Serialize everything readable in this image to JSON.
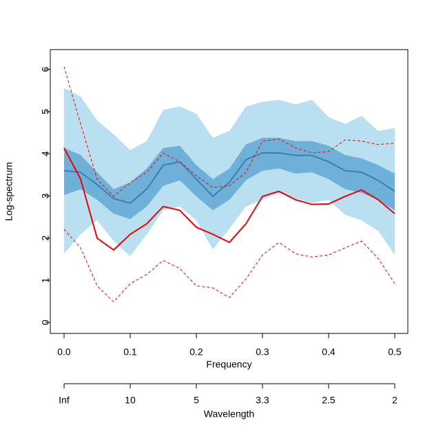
{
  "chart_data": {
    "type": "line",
    "x": [
      0,
      0.025,
      0.05,
      0.075,
      0.1,
      0.125,
      0.15,
      0.175,
      0.2,
      0.225,
      0.25,
      0.275,
      0.3,
      0.325,
      0.35,
      0.375,
      0.4,
      0.425,
      0.45,
      0.475,
      0.5
    ],
    "xlabel": "Frequency",
    "ylabel": "Log-spectrum",
    "xlim": [
      -0.0208,
      0.5198
    ],
    "ylim": [
      -0.26,
      6.47
    ],
    "xticks": [
      {
        "value": 0,
        "label": "0.0"
      },
      0.1,
      0.2,
      0.3,
      0.4,
      0.5
    ],
    "yticks": [
      0,
      1,
      2,
      3,
      4,
      5,
      6
    ],
    "x2label": "Wavelength",
    "x2ticks": [
      {
        "value": 0,
        "label": "Inf"
      },
      {
        "value": 0.1,
        "label": "10"
      },
      {
        "value": 0.2,
        "label": "5"
      },
      {
        "value": 0.3,
        "label": "3.3"
      },
      {
        "value": 0.4,
        "label": "2.5"
      },
      {
        "value": 0.5,
        "label": "2"
      }
    ],
    "bands": [
      {
        "color": "#b9dff0",
        "lower": [
          1.63,
          2.09,
          2.42,
          1.93,
          1.57,
          2.09,
          2.66,
          2.75,
          2.42,
          1.73,
          2.22,
          2.75,
          2.91,
          3.07,
          2.94,
          2.83,
          2.91,
          2.55,
          2.42,
          2.17,
          1.6
        ],
        "upper": [
          5.56,
          5.36,
          4.79,
          4.46,
          4.09,
          4.3,
          5.04,
          5.12,
          4.95,
          4.38,
          4.54,
          5.12,
          5.23,
          5.28,
          5.17,
          5.28,
          4.87,
          4.71,
          4.9,
          4.54,
          4.61
        ]
      },
      {
        "color": "#6fb0d8",
        "lower": [
          3.02,
          3.16,
          2.91,
          2.58,
          2.45,
          2.75,
          3.24,
          3.37,
          2.99,
          2.66,
          2.91,
          3.37,
          3.6,
          3.65,
          3.53,
          3.56,
          3.4,
          3.16,
          3.07,
          2.91,
          2.66
        ],
        "upper": [
          4.14,
          3.97,
          3.56,
          3.16,
          3.32,
          3.65,
          4.14,
          4.19,
          3.73,
          3.4,
          3.65,
          4.22,
          4.38,
          4.38,
          4.3,
          4.3,
          4.19,
          3.97,
          3.89,
          3.73,
          3.53
        ]
      }
    ],
    "series": [
      {
        "color": "#3a7fb4",
        "dash": false,
        "width": 2,
        "values": [
          3.6,
          3.56,
          3.27,
          2.94,
          2.83,
          3.16,
          3.73,
          3.81,
          3.4,
          2.99,
          3.32,
          3.86,
          4.02,
          4.02,
          3.96,
          3.96,
          3.81,
          3.6,
          3.56,
          3.37,
          3.11
        ]
      },
      {
        "color": "#ee0000",
        "dash": false,
        "width": 2,
        "values": [
          4.14,
          3.4,
          2.0,
          1.72,
          2.09,
          2.34,
          2.75,
          2.66,
          2.26,
          2.09,
          1.9,
          2.34,
          2.99,
          3.11,
          2.91,
          2.8,
          2.81,
          2.99,
          3.14,
          2.91,
          2.58
        ]
      },
      {
        "color": "#ee0000",
        "dash": true,
        "width": 1,
        "values": [
          6.07,
          4.71,
          3.4,
          2.99,
          3.32,
          3.56,
          4.02,
          3.81,
          3.48,
          3.2,
          3.24,
          3.56,
          4.3,
          4.35,
          4.14,
          4.02,
          4.05,
          4.33,
          4.3,
          4.22,
          4.25
        ]
      },
      {
        "color": "#ee0000",
        "dash": true,
        "width": 1,
        "values": [
          2.21,
          1.77,
          0.87,
          0.49,
          0.92,
          1.14,
          1.47,
          1.28,
          0.87,
          0.82,
          0.59,
          1.03,
          1.6,
          1.9,
          1.63,
          1.55,
          1.6,
          1.77,
          1.93,
          1.52,
          0.92
        ]
      }
    ]
  }
}
